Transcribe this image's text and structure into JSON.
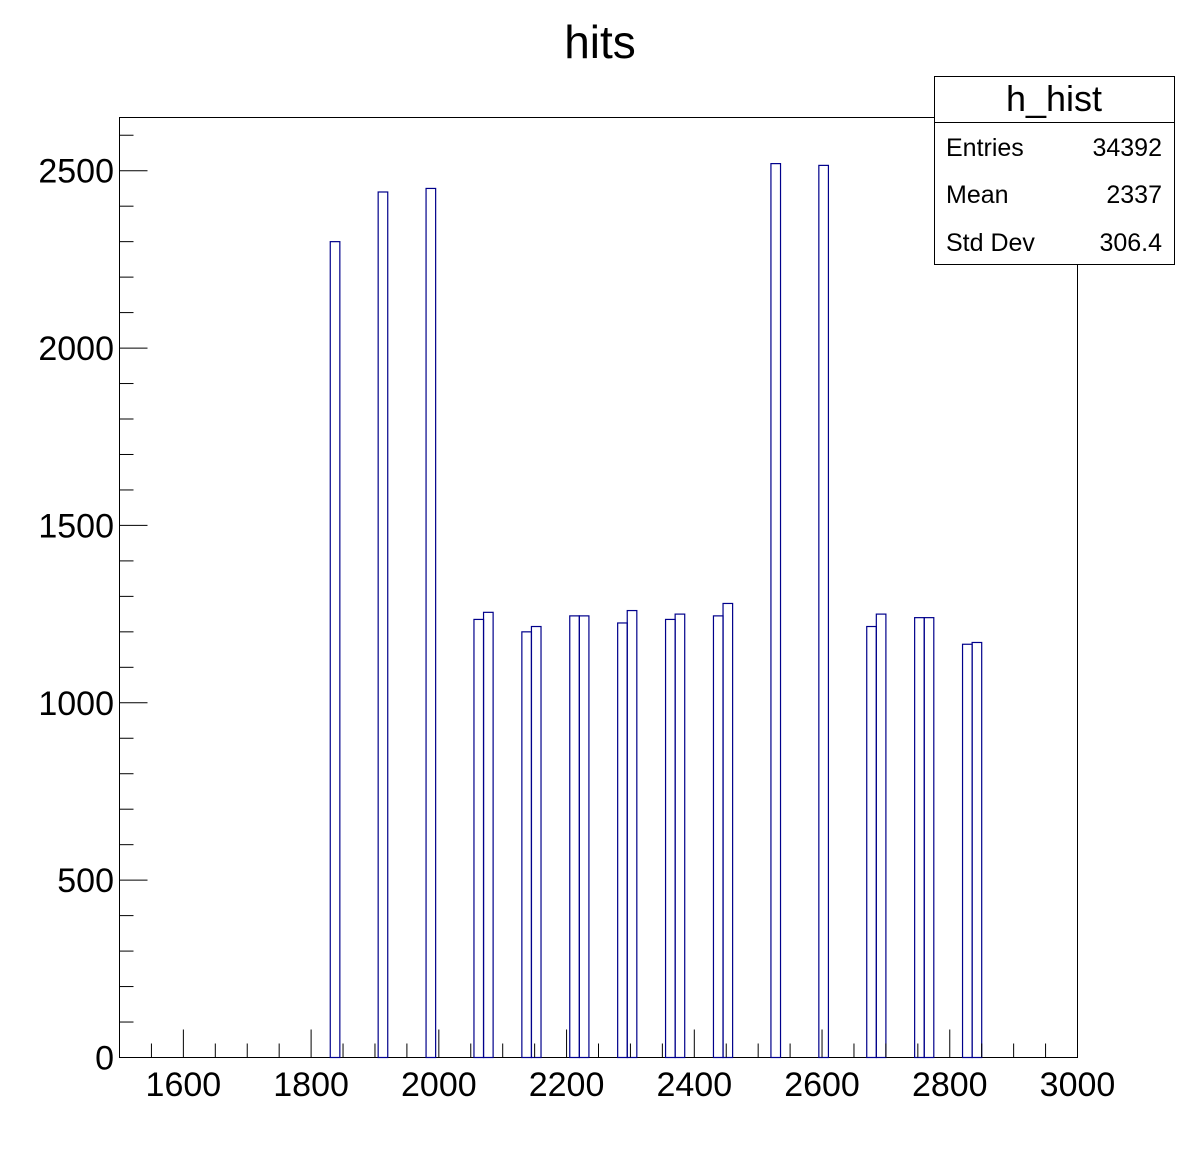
{
  "chart_data": {
    "type": "bar",
    "title": "hits",
    "xlabel": "",
    "ylabel": "",
    "xlim": [
      1500,
      3000
    ],
    "ylim": [
      0,
      2650
    ],
    "bin_width": 15,
    "x_ticks": [
      1600,
      1800,
      2000,
      2200,
      2400,
      2600,
      2800,
      3000
    ],
    "y_ticks": [
      0,
      500,
      1000,
      1500,
      2000,
      2500
    ],
    "line_color": "#00008b",
    "bins": [
      {
        "x": 1830,
        "y": 2300
      },
      {
        "x": 1905,
        "y": 2440
      },
      {
        "x": 1980,
        "y": 2450
      },
      {
        "x": 2055,
        "y": 1235
      },
      {
        "x": 2070,
        "y": 1255
      },
      {
        "x": 2130,
        "y": 1200
      },
      {
        "x": 2145,
        "y": 1215
      },
      {
        "x": 2205,
        "y": 1245
      },
      {
        "x": 2220,
        "y": 1245
      },
      {
        "x": 2280,
        "y": 1225
      },
      {
        "x": 2295,
        "y": 1260
      },
      {
        "x": 2355,
        "y": 1235
      },
      {
        "x": 2370,
        "y": 1250
      },
      {
        "x": 2430,
        "y": 1245
      },
      {
        "x": 2445,
        "y": 1280
      },
      {
        "x": 2520,
        "y": 2520
      },
      {
        "x": 2595,
        "y": 2515
      },
      {
        "x": 2670,
        "y": 1215
      },
      {
        "x": 2685,
        "y": 1250
      },
      {
        "x": 2745,
        "y": 1240
      },
      {
        "x": 2760,
        "y": 1240
      },
      {
        "x": 2820,
        "y": 1165
      },
      {
        "x": 2835,
        "y": 1170
      }
    ]
  },
  "stats_box": {
    "name": "h_hist",
    "rows": [
      {
        "label": "Entries",
        "value": "34392"
      },
      {
        "label": "Mean",
        "value": "2337"
      },
      {
        "label": "Std Dev",
        "value": "306.4"
      }
    ]
  }
}
